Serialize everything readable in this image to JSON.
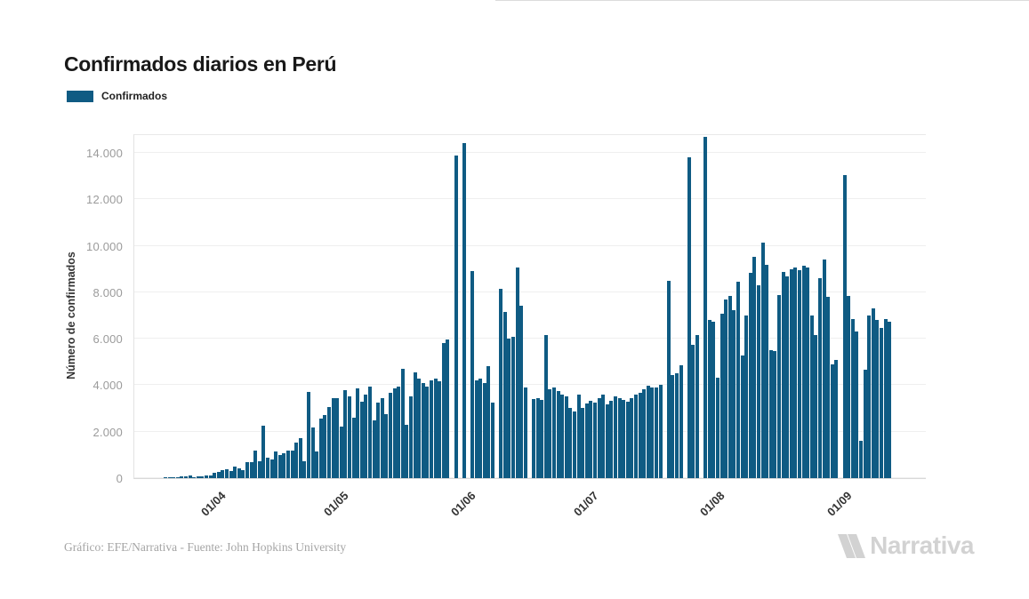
{
  "title": "Confirmados diarios en Perú",
  "legend": {
    "label": "Confirmados"
  },
  "y_axis": {
    "title": "Número de confirmados",
    "tick_labels": [
      "0",
      "2.000",
      "4.000",
      "6.000",
      "8.000",
      "10.000",
      "12.000",
      "14.000"
    ],
    "tick_interval": 2000,
    "max": 14800
  },
  "x_axis": {
    "tick_labels": [
      "01/04",
      "01/05",
      "01/06",
      "01/07",
      "01/08",
      "01/09"
    ],
    "tick_indices": [
      12,
      42,
      73,
      103,
      134,
      165
    ]
  },
  "footer": {
    "credit": "Gráfico: EFE/Narrativa - Fuente: John Hopkins University"
  },
  "logo": {
    "text": "Narrativa"
  },
  "colors": {
    "bar": "#0f5b83",
    "grid": "#efefef",
    "y_label": "#9b9b9b",
    "logo": "#d2d2d2"
  },
  "chart_data": {
    "type": "bar",
    "title": "Confirmados diarios en Perú",
    "series_name": "Confirmados",
    "xlabel": "",
    "ylabel": "Número de confirmados",
    "ylim": [
      0,
      14800
    ],
    "grid": true,
    "legend_position": "top-left",
    "x_tick_labels": [
      "01/04",
      "01/05",
      "01/06",
      "01/07",
      "01/08",
      "01/09"
    ],
    "x_tick_indices": [
      12,
      42,
      73,
      103,
      134,
      165
    ],
    "values": [
      30,
      40,
      35,
      45,
      70,
      90,
      100,
      55,
      65,
      95,
      115,
      130,
      245,
      285,
      350,
      400,
      310,
      480,
      415,
      340,
      675,
      700,
      1195,
      740,
      2265,
      870,
      805,
      1130,
      1000,
      1065,
      1170,
      1170,
      1545,
      1715,
      745,
      3720,
      2165,
      1130,
      2555,
      2725,
      3075,
      3435,
      3435,
      2230,
      3790,
      3500,
      2600,
      3865,
      3275,
      3600,
      3930,
      2470,
      3240,
      3450,
      2750,
      3655,
      3850,
      3950,
      4690,
      2300,
      3500,
      4550,
      4300,
      4100,
      3950,
      4200,
      4270,
      4165,
      5800,
      5950,
      0,
      13900,
      0,
      14400,
      0,
      8900,
      4195,
      4270,
      4100,
      4815,
      3240,
      0,
      8150,
      7140,
      6000,
      6070,
      9080,
      7420,
      3910,
      0,
      3420,
      3455,
      3355,
      6165,
      3840,
      3890,
      3765,
      3585,
      3510,
      3020,
      2880,
      3610,
      3020,
      3200,
      3320,
      3265,
      3440,
      3590,
      3170,
      3330,
      3510,
      3460,
      3380,
      3275,
      3460,
      3610,
      3675,
      3840,
      3970,
      3890,
      3920,
      4020,
      0,
      8490,
      4440,
      4530,
      4850,
      0,
      13795,
      5720,
      6140,
      0,
      14700,
      6805,
      6740,
      4315,
      7090,
      7700,
      7830,
      7215,
      8465,
      5270,
      7000,
      8850,
      9515,
      8315,
      10150,
      9170,
      5525,
      5465,
      7890,
      8890,
      8685,
      8980,
      9065,
      8940,
      9140,
      9060,
      6995,
      6170,
      8595,
      9425,
      7805,
      4913,
      5080,
      0,
      13040,
      7830,
      6830,
      6320,
      1604,
      4659,
      6997,
      7291,
      6800,
      6448,
      6830,
      6741
    ]
  }
}
